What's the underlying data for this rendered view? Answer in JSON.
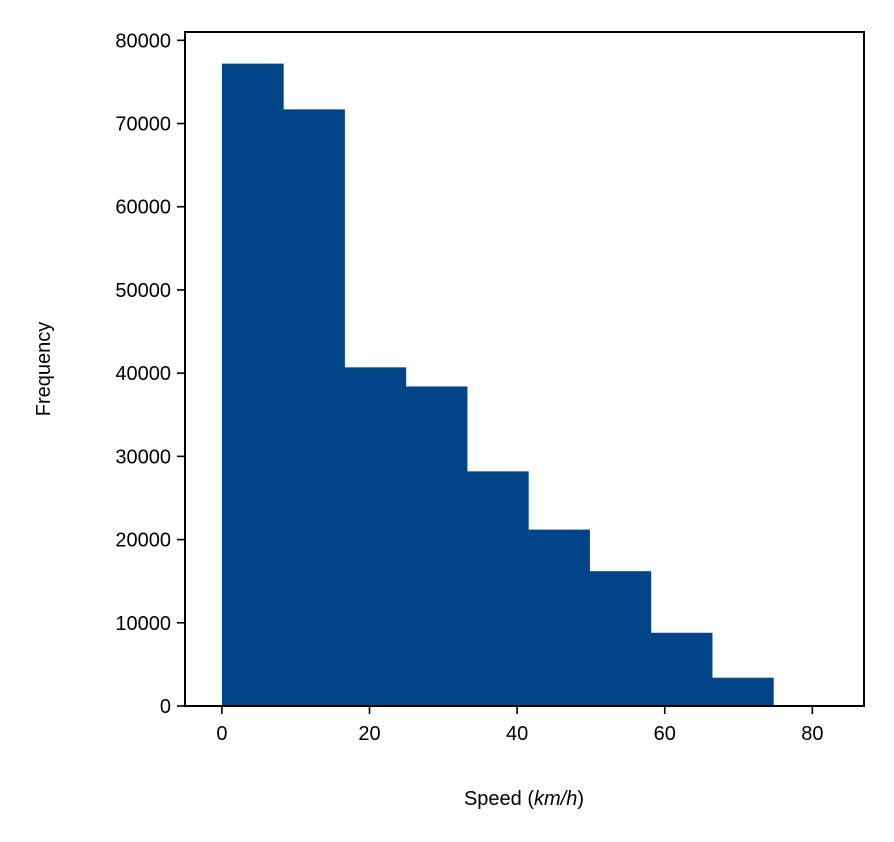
{
  "chart_data": {
    "type": "bar",
    "title": "",
    "xlabel_prefix": "Speed (",
    "xlabel_unit": "km/h",
    "xlabel_suffix": ")",
    "ylabel": "Frequency",
    "xlim": [
      -5,
      87
    ],
    "ylim": [
      0,
      81000
    ],
    "xticks": [
      0,
      20,
      40,
      60,
      80
    ],
    "yticks": [
      0,
      10000,
      20000,
      30000,
      40000,
      50000,
      60000,
      70000,
      80000
    ],
    "bin_edges": [
      0,
      8.3,
      16.6,
      24.9,
      33.2,
      41.5,
      49.8,
      58.1,
      66.4,
      74.7,
      83.0
    ],
    "values": [
      77200,
      71700,
      40700,
      38400,
      28200,
      21200,
      16200,
      8800,
      3400,
      0
    ],
    "color": "#004488",
    "grid": false,
    "legend": false
  }
}
